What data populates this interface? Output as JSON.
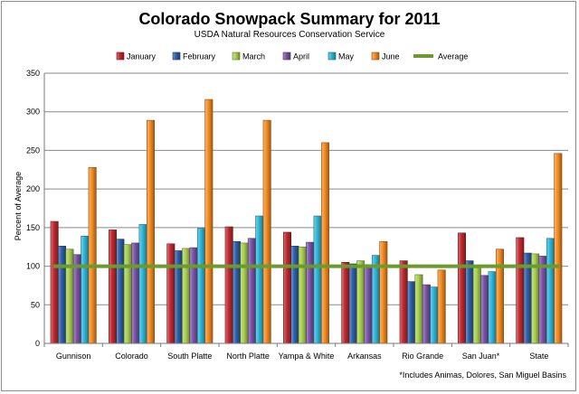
{
  "chart_data": {
    "type": "bar",
    "title": "Colorado Snowpack Summary for 2011",
    "subtitle": "USDA Natural Resources Conservation Service",
    "ylabel": "Percent of Average",
    "xlabel": "",
    "ylim": [
      0,
      350
    ],
    "yticks": [
      0,
      50,
      100,
      150,
      200,
      250,
      300,
      350
    ],
    "categories": [
      "Gunnison",
      "Colorado",
      "South Platte",
      "North Platte",
      "Yampa & White",
      "Arkansas",
      "Rio Grande",
      "San Juan*",
      "State"
    ],
    "series": [
      {
        "name": "January",
        "color": "#c0282d",
        "values": [
          158,
          147,
          129,
          151,
          144,
          105,
          107,
          143,
          137
        ]
      },
      {
        "name": "February",
        "color": "#2e5fa8",
        "values": [
          126,
          135,
          120,
          132,
          126,
          103,
          80,
          107,
          117
        ]
      },
      {
        "name": "March",
        "color": "#a8d04f",
        "values": [
          122,
          128,
          123,
          130,
          125,
          107,
          89,
          98,
          116
        ]
      },
      {
        "name": "April",
        "color": "#7b52a6",
        "values": [
          115,
          130,
          124,
          136,
          131,
          102,
          76,
          88,
          113
        ]
      },
      {
        "name": "May",
        "color": "#2bb5d8",
        "values": [
          139,
          154,
          149,
          165,
          165,
          114,
          73,
          93,
          136
        ]
      },
      {
        "name": "June",
        "color": "#f58b1f",
        "values": [
          228,
          289,
          316,
          289,
          260,
          132,
          95,
          122,
          246
        ]
      }
    ],
    "average_line": {
      "name": "Average",
      "color": "#6b9a2d",
      "value": 100
    },
    "legend_position": "top",
    "grid": true,
    "footnote": "*Includes Animas, Dolores, San Miguel Basins"
  }
}
